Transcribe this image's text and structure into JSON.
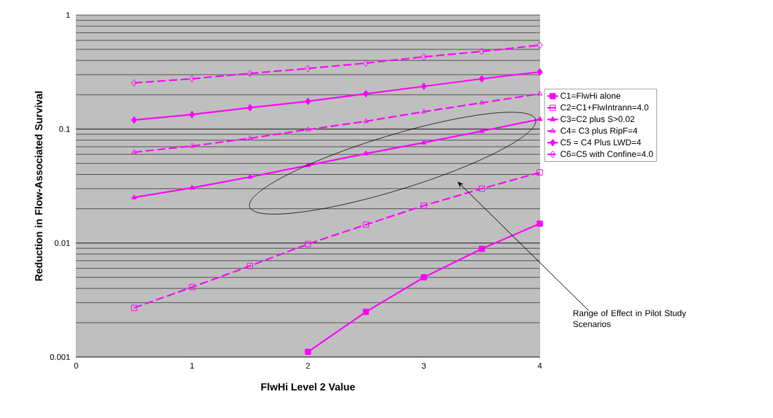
{
  "chart_data": {
    "type": "line",
    "xlabel": "FlwHi Level 2 Value",
    "ylabel": "Reduction in Flow-Associated Survival",
    "x": [
      0.5,
      1,
      1.5,
      2,
      2.5,
      3,
      3.5,
      4
    ],
    "series": [
      {
        "name": "C1=FlwHi alone",
        "color": "#ff00ff",
        "marker": "square",
        "line_style": "solid",
        "values": [
          null,
          null,
          null,
          0.00111,
          0.00249,
          0.005,
          0.0089,
          0.0148
        ]
      },
      {
        "name": "C2=C1+FlwIntrann=4.0",
        "color": "#ff00ff",
        "marker": "square",
        "line_style": "dashed",
        "values": [
          0.0027,
          0.0041,
          0.0063,
          0.0098,
          0.0145,
          0.0213,
          0.03,
          0.0416
        ]
      },
      {
        "name": "C3=C2 plus S>0.02",
        "color": "#ff00ff",
        "marker": "triangle",
        "line_style": "solid",
        "values": [
          0.0251,
          0.0305,
          0.038,
          0.048,
          0.061,
          0.076,
          0.096,
          0.122
        ]
      },
      {
        "name": "C4= C3 plus RipF=4",
        "color": "#ff00ff",
        "marker": "triangle",
        "line_style": "dashed",
        "values": [
          0.0627,
          0.071,
          0.083,
          0.099,
          0.117,
          0.142,
          0.17,
          0.204
        ]
      },
      {
        "name": "C5 = C4 Plus LWD=4",
        "color": "#ff00ff",
        "marker": "diamond",
        "line_style": "solid",
        "values": [
          0.12,
          0.134,
          0.154,
          0.175,
          0.204,
          0.237,
          0.276,
          0.317
        ]
      },
      {
        "name": "C6=C5 with Confine=4.0",
        "color": "#ff00ff",
        "marker": "diamond",
        "line_style": "dashed",
        "values": [
          0.254,
          0.276,
          0.308,
          0.34,
          0.379,
          0.43,
          0.48,
          0.544
        ]
      }
    ],
    "xlim": [
      0,
      4
    ],
    "xticks": [
      0,
      1,
      2,
      3,
      4
    ],
    "ylim": [
      0.001,
      1
    ],
    "yticks": [
      0.001,
      0.01,
      0.1,
      1
    ],
    "log": "y",
    "grid": "y",
    "legend": "right",
    "annotations": [
      "Range of Effect in Pilot Study Scenarios"
    ]
  }
}
